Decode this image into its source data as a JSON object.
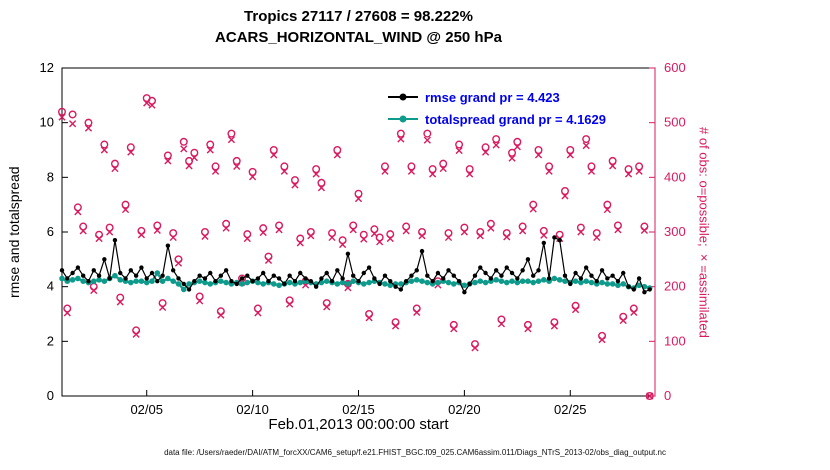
{
  "title": {
    "line1": "Tropics 27117 / 27608 = 98.222%",
    "line2": "ACARS_HORIZONTAL_WIND @ 250 hPa"
  },
  "legend": {
    "text_color": "#0000EE",
    "items": [
      {
        "label": "rmse grand pr = 4.423",
        "color": "#000000"
      },
      {
        "label": "totalspread grand pr = 4.1629",
        "color": "#0f9b8c"
      }
    ]
  },
  "footer": "data file: /Users/raeder/DAI/ATM_forcXX/CAM6_setup/f.e21.FHIST_BGC.f09_025.CAM6assim.011/Diags_NTrS_2013-02/obs_diag_output.nc",
  "colors": {
    "obs_pink": "#d81b60",
    "totalspread_teal": "#0f9b8c",
    "rmse_black": "#000000",
    "legend_text_blue": "#0000EE",
    "axis_black": "#000000"
  },
  "chart_data": {
    "type": "line",
    "title": "Tropics 27117 / 27608 = 98.222% | ACARS_HORIZONTAL_WIND @ 250 hPa",
    "x": {
      "start": 0,
      "step": 0.25,
      "unit": "days since Feb.01,2013 00:00:00"
    },
    "x_axis": {
      "label": "Feb.01,2013 00:00:00 start",
      "min": 0,
      "max": 28,
      "ticks": [
        {
          "day": 4,
          "label": "02/05"
        },
        {
          "day": 9,
          "label": "02/10"
        },
        {
          "day": 14,
          "label": "02/15"
        },
        {
          "day": 19,
          "label": "02/20"
        },
        {
          "day": 24,
          "label": "02/25"
        }
      ]
    },
    "left_axis": {
      "label": "rmse and totalspread",
      "min": 0,
      "max": 12,
      "ticks": [
        0,
        2,
        4,
        6,
        8,
        10,
        12
      ]
    },
    "right_axis": {
      "label": "# of obs: o=possible; ×=assimilated",
      "min": 0,
      "max": 600,
      "ticks": [
        0,
        100,
        200,
        300,
        400,
        500,
        600
      ],
      "color": "#d81b60"
    },
    "grid": false,
    "legend_position": "upper-center-inside",
    "series": [
      {
        "name": "rmse",
        "axis": "left",
        "color": "#000000",
        "marker": "filled-circle",
        "grand_pr": 4.423,
        "values": [
          4.6,
          4.3,
          4.5,
          4.7,
          4.4,
          4.2,
          4.6,
          4.4,
          5.0,
          4.3,
          5.7,
          4.5,
          4.3,
          4.6,
          4.4,
          4.7,
          4.3,
          4.5,
          4.2,
          4.4,
          5.5,
          4.6,
          4.3,
          4.1,
          3.9,
          4.2,
          4.4,
          4.3,
          4.5,
          4.2,
          4.4,
          4.6,
          4.2,
          4.1,
          4.3,
          4.4,
          4.2,
          4.3,
          4.5,
          4.2,
          4.4,
          4.3,
          4.1,
          4.4,
          4.2,
          4.5,
          4.3,
          4.2,
          4.0,
          4.3,
          4.5,
          4.2,
          4.6,
          4.3,
          5.2,
          4.4,
          4.2,
          4.5,
          4.7,
          4.3,
          4.1,
          4.4,
          4.2,
          4.0,
          3.9,
          4.2,
          4.4,
          4.6,
          5.3,
          4.4,
          4.2,
          4.5,
          4.3,
          4.6,
          4.4,
          4.2,
          3.8,
          4.1,
          4.4,
          4.7,
          4.5,
          4.3,
          4.6,
          4.4,
          4.7,
          4.5,
          4.3,
          4.6,
          5.0,
          4.4,
          4.6,
          5.6,
          4.3,
          5.8,
          5.7,
          4.4,
          4.1,
          4.5,
          4.3,
          4.7,
          4.4,
          4.2,
          4.6,
          4.3,
          4.4,
          4.2,
          4.5,
          4.0,
          3.9,
          4.3,
          3.8,
          3.9
        ]
      },
      {
        "name": "totalspread",
        "axis": "left",
        "color": "#0f9b8c",
        "marker": "filled-circle",
        "grand_pr": 4.1629,
        "values": [
          4.3,
          4.2,
          4.25,
          4.3,
          4.2,
          4.15,
          4.2,
          4.25,
          4.2,
          4.3,
          4.4,
          4.25,
          4.2,
          4.15,
          4.2,
          4.2,
          4.15,
          4.2,
          4.5,
          4.2,
          4.3,
          4.2,
          4.1,
          3.9,
          4.1,
          4.15,
          4.2,
          4.15,
          4.1,
          4.15,
          4.2,
          4.15,
          4.1,
          4.15,
          4.1,
          4.15,
          4.2,
          4.15,
          4.1,
          4.15,
          4.1,
          4.05,
          4.1,
          4.15,
          4.1,
          4.15,
          4.2,
          4.15,
          4.1,
          4.15,
          4.2,
          4.15,
          4.1,
          4.15,
          4.1,
          4.2,
          4.15,
          4.1,
          4.15,
          4.2,
          4.15,
          4.1,
          4.05,
          4.1,
          4.1,
          4.15,
          4.2,
          4.25,
          4.2,
          4.15,
          4.1,
          4.15,
          4.2,
          4.15,
          4.1,
          4.15,
          4.05,
          4.1,
          4.15,
          4.2,
          4.15,
          4.2,
          4.25,
          4.2,
          4.15,
          4.2,
          4.15,
          4.2,
          4.2,
          4.15,
          4.2,
          4.25,
          4.2,
          4.3,
          4.25,
          4.2,
          4.15,
          4.2,
          4.15,
          4.2,
          4.15,
          4.1,
          4.15,
          4.1,
          4.1,
          4.05,
          4.1,
          4.0,
          3.95,
          4.05,
          4.0,
          3.95
        ]
      },
      {
        "name": "possible",
        "axis": "right",
        "color": "#d81b60",
        "marker": "open-circle",
        "values": [
          520,
          160,
          515,
          345,
          310,
          500,
          200,
          295,
          460,
          308,
          425,
          180,
          350,
          455,
          120,
          302,
          545,
          540,
          312,
          170,
          440,
          298,
          250,
          465,
          430,
          445,
          182,
          300,
          460,
          420,
          155,
          315,
          480,
          430,
          215,
          296,
          410,
          160,
          307,
          255,
          450,
          312,
          420,
          175,
          395,
          288,
          210,
          300,
          415,
          390,
          170,
          298,
          450,
          285,
          205,
          312,
          370,
          295,
          150,
          305,
          290,
          420,
          296,
          135,
          480,
          310,
          420,
          160,
          300,
          480,
          415,
          210,
          425,
          298,
          130,
          460,
          308,
          415,
          95,
          300,
          455,
          315,
          470,
          140,
          298,
          445,
          465,
          310,
          130,
          350,
          450,
          302,
          420,
          135,
          295,
          375,
          450,
          165,
          308,
          470,
          420,
          298,
          110,
          350,
          430,
          312,
          145,
          415,
          160,
          420,
          310,
          0
        ]
      },
      {
        "name": "assimilated",
        "axis": "right",
        "color": "#d81b60",
        "marker": "cross",
        "values": [
          510,
          152,
          498,
          337,
          302,
          490,
          193,
          288,
          450,
          300,
          416,
          172,
          341,
          446,
          113,
          295,
          536,
          532,
          303,
          162,
          430,
          290,
          243,
          452,
          421,
          436,
          174,
          292,
          450,
          411,
          148,
          307,
          469,
          420,
          208,
          288,
          401,
          152,
          299,
          248,
          441,
          304,
          411,
          168,
          386,
          280,
          203,
          293,
          406,
          381,
          163,
          290,
          441,
          277,
          198,
          304,
          361,
          287,
          143,
          297,
          282,
          411,
          288,
          128,
          470,
          302,
          411,
          153,
          293,
          468,
          406,
          203,
          416,
          290,
          123,
          449,
          300,
          406,
          88,
          293,
          446,
          307,
          459,
          132,
          291,
          435,
          456,
          302,
          123,
          342,
          441,
          294,
          411,
          128,
          288,
          366,
          441,
          158,
          300,
          458,
          411,
          290,
          103,
          341,
          421,
          304,
          138,
          406,
          153,
          411,
          303,
          0
        ]
      }
    ]
  }
}
